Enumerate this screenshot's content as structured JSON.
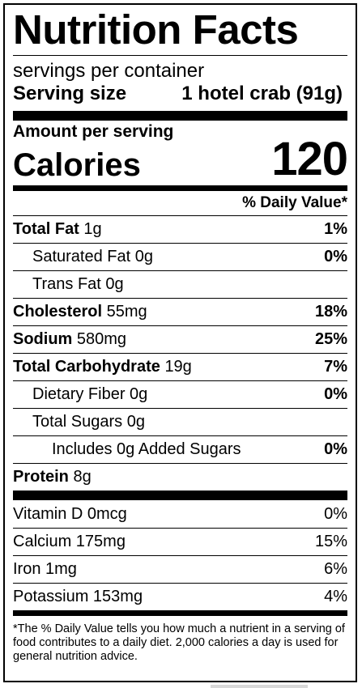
{
  "title": "Nutrition Facts",
  "servings": "servings per container",
  "serving_size": {
    "label": "Serving size",
    "value": "1 hotel crab (91g)"
  },
  "amount_label": "Amount per serving",
  "calories": {
    "label": "Calories",
    "value": "120"
  },
  "dv_header": "% Daily Value*",
  "nutrients": [
    {
      "name": "Total Fat",
      "amount": "1g",
      "dv": "1%",
      "bold": true,
      "indent": 0
    },
    {
      "name": "Saturated Fat",
      "amount": "0g",
      "dv": "0%",
      "bold": false,
      "indent": 1
    },
    {
      "name": "Trans Fat",
      "amount": "0g",
      "dv": "",
      "bold": false,
      "indent": 1
    },
    {
      "name": "Cholesterol",
      "amount": "55mg",
      "dv": "18%",
      "bold": true,
      "indent": 0
    },
    {
      "name": "Sodium",
      "amount": "580mg",
      "dv": "25%",
      "bold": true,
      "indent": 0
    },
    {
      "name": "Total Carbohydrate",
      "amount": "19g",
      "dv": "7%",
      "bold": true,
      "indent": 0
    },
    {
      "name": "Dietary Fiber",
      "amount": "0g",
      "dv": "0%",
      "bold": false,
      "indent": 1
    },
    {
      "name": "Total Sugars",
      "amount": "0g",
      "dv": "",
      "bold": false,
      "indent": 1
    },
    {
      "name": "Includes 0g Added Sugars",
      "amount": "",
      "dv": "0%",
      "bold": false,
      "indent": 2
    },
    {
      "name": "Protein",
      "amount": "8g",
      "dv": "",
      "bold": true,
      "indent": 0
    }
  ],
  "vitamins": [
    {
      "name": "Vitamin D 0mcg",
      "dv": "0%"
    },
    {
      "name": "Calcium 175mg",
      "dv": "15%"
    },
    {
      "name": "Iron 1mg",
      "dv": "6%"
    },
    {
      "name": "Potassium 153mg",
      "dv": "4%"
    }
  ],
  "footnote": "*The % Daily Value tells you how much a nutrient in a serving of food contributes to a daily diet. 2,000 calories a day is used for general nutrition advice."
}
